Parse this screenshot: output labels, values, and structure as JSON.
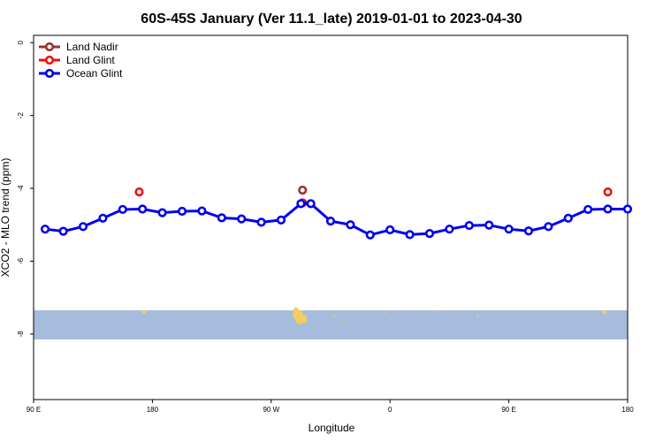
{
  "chart_data": {
    "type": "line",
    "title": "60S-45S January (Ver 11.1_late)   2019-01-01 to 2023-04-30",
    "xlabel": "Longitude",
    "ylabel": "XCO2 - MLO trend (ppm)",
    "xlim": [
      90,
      450
    ],
    "ylim": [
      -9.8,
      0.2
    ],
    "x_ticks": [
      {
        "value": 90,
        "label": "90 E"
      },
      {
        "value": 162,
        "label": "180"
      },
      {
        "value": 234,
        "label": "90 W"
      },
      {
        "value": 306,
        "label": "0"
      },
      {
        "value": 378,
        "label": "90 E"
      },
      {
        "value": 450,
        "label": "180"
      }
    ],
    "y_ticks": [
      0,
      -2,
      -4,
      -6,
      -8
    ],
    "legend_position": "top-left",
    "grid": false,
    "series": [
      {
        "name": "Land Nadir",
        "color": "#993333",
        "x": [
          253
        ],
        "y": [
          -4.05
        ]
      },
      {
        "name": "Land Glint",
        "color": "#ee1111",
        "x": [
          154,
          253,
          438
        ],
        "y": [
          -4.1,
          -4.4,
          -4.1
        ]
      },
      {
        "name": "Ocean Glint",
        "color": "#0000ee",
        "x": [
          97,
          108,
          120,
          132,
          144,
          156,
          168,
          180,
          192,
          204,
          216,
          228,
          240,
          252,
          258,
          270,
          282,
          294,
          306,
          318,
          330,
          342,
          354,
          366,
          378,
          390,
          402,
          414,
          426,
          438,
          450
        ],
        "y": [
          -5.12,
          -5.18,
          -5.05,
          -4.82,
          -4.58,
          -4.57,
          -4.67,
          -4.63,
          -4.62,
          -4.81,
          -4.84,
          -4.93,
          -4.87,
          -4.42,
          -4.42,
          -4.9,
          -5.0,
          -5.28,
          -5.14,
          -5.27,
          -5.24,
          -5.12,
          -5.02,
          -5.01,
          -5.12,
          -5.17,
          -5.05,
          -4.82,
          -4.58,
          -4.57,
          -4.57
        ]
      }
    ],
    "map_strip": {
      "y_range": [
        -7.35,
        -8.15
      ],
      "ocean_color": "#a6bcdc",
      "land_color": "#f5cc60"
    }
  }
}
